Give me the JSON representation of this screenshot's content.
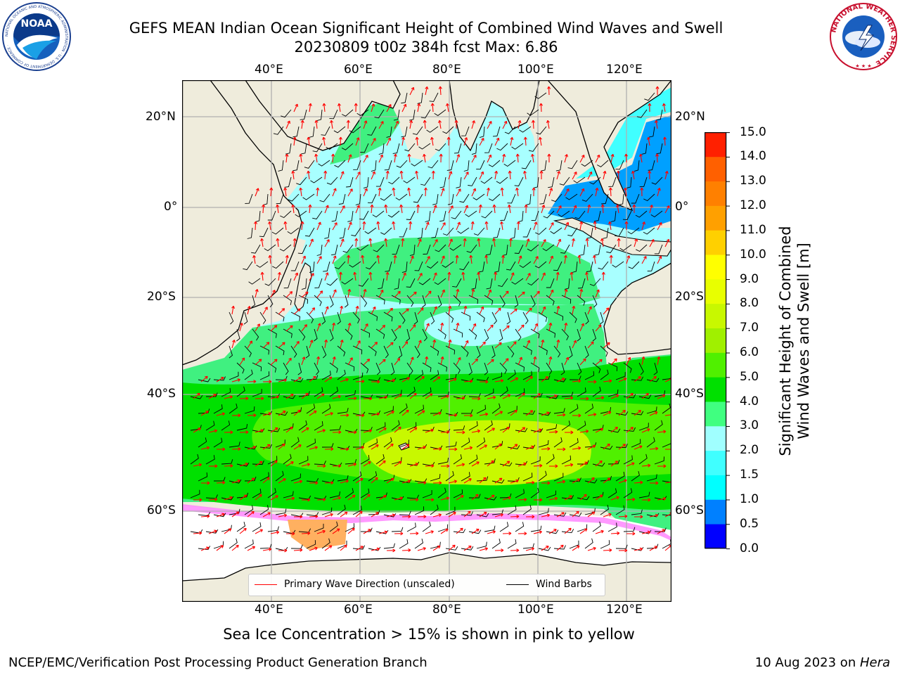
{
  "title_line1": "GEFS MEAN Indian Ocean Significant Height of Combined Wind Waves and Swell",
  "title_line2": "20230809 t00z 384h fcst   Max: 6.86",
  "lon_labels": [
    "40°E",
    "60°E",
    "80°E",
    "100°E",
    "120°E"
  ],
  "lat_labels": [
    "20°N",
    "0°",
    "20°S",
    "40°S",
    "60°S"
  ],
  "colorbar": {
    "label_line1": "Significant Height of Combined",
    "label_line2": "Wind Waves and Swell [m]",
    "ticks": [
      "15.0",
      "14.0",
      "13.0",
      "12.0",
      "11.0",
      "10.0",
      "9.0",
      "8.0",
      "7.0",
      "6.0",
      "5.0",
      "4.0",
      "3.0",
      "2.0",
      "1.5",
      "1.0",
      "0.5",
      "0.0"
    ],
    "colors": [
      "#0000ff",
      "#0080ff",
      "#00ffff",
      "#40ffff",
      "#a0ffff",
      "#40ff80",
      "#00e000",
      "#50f000",
      "#a0f000",
      "#c8f800",
      "#e8ff00",
      "#ffff00",
      "#ffd000",
      "#ffa000",
      "#ff8000",
      "#ff6000",
      "#ff2000"
    ]
  },
  "legend": {
    "wave_label": "Primary Wave Direction (unscaled)",
    "barb_label": "Wind Barbs",
    "wave_color": "#ff0000",
    "barb_color": "#000000"
  },
  "note": "Sea Ice Concentration > 15% is shown in pink to yellow",
  "footer_left": "NCEP/EMC/Verification Post Processing Product Generation Branch",
  "footer_date": "10 Aug 2023 on ",
  "footer_host": "Hera",
  "logos": {
    "noaa_text": "NOAA",
    "noaa_ring": "NATIONAL OCEANIC AND ATMOSPHERIC ADMINISTRATION · U.S. DEPARTMENT OF COMMERCE ·",
    "nws_ring": "NATIONAL WEATHER SERVICE"
  },
  "colors": {
    "land": "#efecdc",
    "ice_white": "#ffffff"
  }
}
